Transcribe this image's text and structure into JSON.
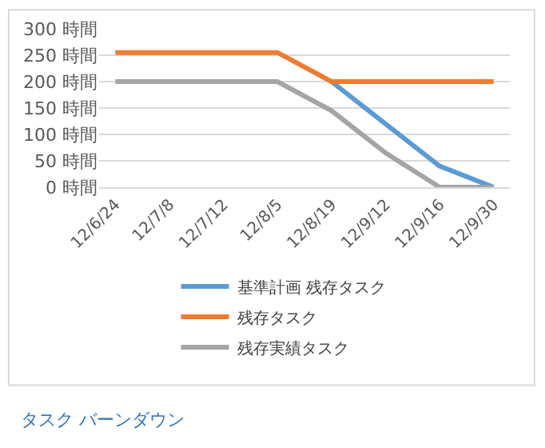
{
  "chart_data": {
    "type": "line",
    "categories": [
      "12/6/24",
      "12/7/8",
      "12/7/12",
      "12/8/5",
      "12/8/19",
      "12/9/12",
      "12/9/16",
      "12/9/30"
    ],
    "series": [
      {
        "name": "基準計画 残存タスク",
        "color": "#5b9bd5",
        "values": [
          null,
          null,
          null,
          null,
          200,
          120,
          40,
          0
        ]
      },
      {
        "name": "残存タスク",
        "color": "#ed7d31",
        "values": [
          255,
          255,
          255,
          255,
          200,
          200,
          200,
          200
        ]
      },
      {
        "name": "残存実績タスク",
        "color": "#a5a5a5",
        "values": [
          200,
          200,
          200,
          200,
          145,
          65,
          0,
          0
        ]
      }
    ],
    "ylim": [
      0,
      300
    ],
    "yticks": [
      {
        "value": 0,
        "label": "0 時間"
      },
      {
        "value": 50,
        "label": "50 時間"
      },
      {
        "value": 100,
        "label": "100 時間"
      },
      {
        "value": 150,
        "label": "150 時間"
      },
      {
        "value": 200,
        "label": "200 時間"
      },
      {
        "value": 250,
        "label": "250 時間"
      },
      {
        "value": 300,
        "label": "300 時間"
      }
    ],
    "grid": "y",
    "legend": "bottom",
    "marker": "none",
    "line_style": "solid",
    "annotations": [
      "タスク バーンダウン"
    ]
  }
}
